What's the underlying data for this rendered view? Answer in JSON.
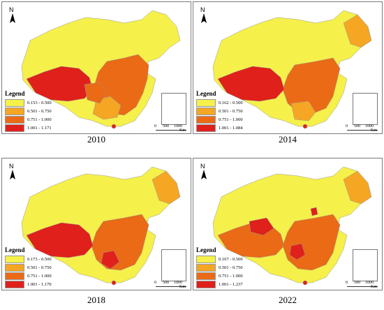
{
  "colors": {
    "class1": "#f5f04a",
    "class2": "#f5a623",
    "class3": "#ea6a16",
    "class4": "#e0201b"
  },
  "legend_title": "Legend",
  "north_label": "N",
  "scale_labels": {
    "zero": "0",
    "mid": "500",
    "max": "1000",
    "unit": "Km"
  },
  "panels": [
    {
      "year": "2010",
      "legend": [
        "0.153 - 0.500",
        "0.501 - 0.750",
        "0.751 - 1.000",
        "1.001 - 1.171"
      ]
    },
    {
      "year": "2014",
      "legend": [
        "0.162 - 0.500",
        "0.501 - 0.750",
        "0.751 - 1.000",
        "1.001 - 1.084"
      ]
    },
    {
      "year": "2018",
      "legend": [
        "0.173 - 0.500",
        "0.501 - 0.750",
        "0.751 - 1.000",
        "1.001 - 1.170"
      ]
    },
    {
      "year": "2022",
      "legend": [
        "0.167 - 0.500",
        "0.501 - 0.750",
        "0.751 - 1.000",
        "1.001 - 1.237"
      ]
    }
  ]
}
